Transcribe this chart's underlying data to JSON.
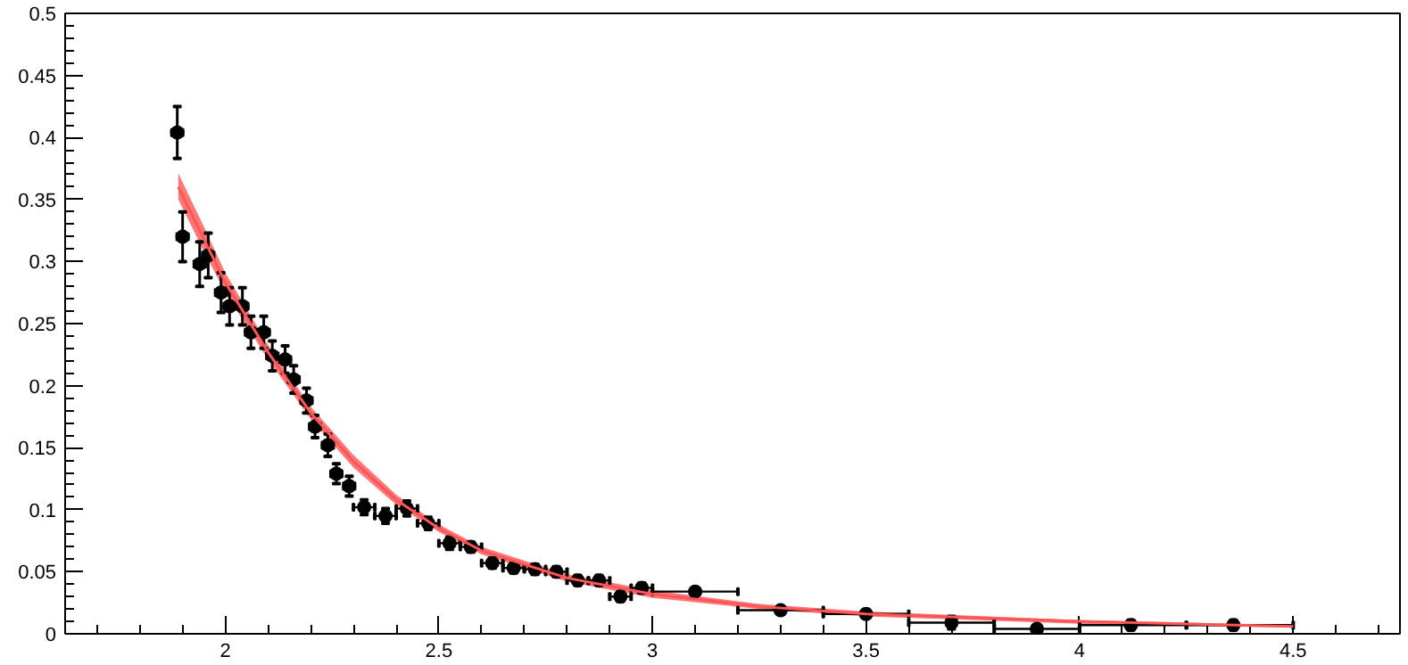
{
  "chart_data": {
    "type": "scatter",
    "xlim": [
      1.625,
      4.75
    ],
    "ylim": [
      0,
      0.5
    ],
    "xticks": [
      2,
      2.5,
      3,
      3.5,
      4,
      4.5
    ],
    "yticks": [
      0,
      0.05,
      0.1,
      0.15,
      0.2,
      0.25,
      0.3,
      0.35,
      0.4,
      0.45,
      0.5
    ],
    "series": [
      {
        "type": "line",
        "color": "#ff5555",
        "x": [
          1.89,
          1.95,
          2.0,
          2.1,
          2.2,
          2.3,
          2.4,
          2.5,
          2.6,
          2.8,
          3.0,
          3.25,
          3.5,
          4.0,
          4.5
        ],
        "values": [
          0.36,
          0.318,
          0.283,
          0.227,
          0.178,
          0.139,
          0.108,
          0.085,
          0.067,
          0.045,
          0.032,
          0.022,
          0.016,
          0.01,
          0.006
        ],
        "lower": [
          0.35,
          0.308,
          0.275,
          0.221,
          0.173,
          0.134,
          0.104,
          0.082,
          0.064,
          0.042,
          0.029,
          0.02,
          0.014,
          0.008,
          0.005
        ],
        "upper": [
          0.371,
          0.328,
          0.291,
          0.233,
          0.183,
          0.144,
          0.112,
          0.088,
          0.07,
          0.048,
          0.035,
          0.024,
          0.018,
          0.011,
          0.007
        ]
      },
      {
        "color": "#000000",
        "marker": "circle",
        "x": [
          1.8875,
          1.9,
          1.94,
          1.96,
          1.99,
          2.01,
          2.04,
          2.06,
          2.09,
          2.11,
          2.14,
          2.16,
          2.19,
          2.21,
          2.24,
          2.26,
          2.29,
          2.325,
          2.375,
          2.425,
          2.475,
          2.525,
          2.575,
          2.625,
          2.675,
          2.725,
          2.775,
          2.825,
          2.875,
          2.925,
          2.975,
          3.1,
          3.3,
          3.5,
          3.7,
          3.9,
          4.12,
          4.36
        ],
        "values": [
          0.404,
          0.32,
          0.298,
          0.305,
          0.275,
          0.264,
          0.264,
          0.243,
          0.243,
          0.224,
          0.221,
          0.205,
          0.188,
          0.167,
          0.152,
          0.129,
          0.119,
          0.102,
          0.095,
          0.101,
          0.089,
          0.073,
          0.07,
          0.057,
          0.053,
          0.052,
          0.05,
          0.043,
          0.043,
          0.03,
          0.037,
          0.034,
          0.019,
          0.016,
          0.009,
          0.004,
          0.007,
          0.007
        ],
        "errors": [
          0.021,
          0.02,
          0.018,
          0.018,
          0.016,
          0.015,
          0.015,
          0.013,
          0.013,
          0.012,
          0.011,
          0.011,
          0.01,
          0.009,
          0.009,
          0.008,
          0.008,
          0.006,
          0.006,
          0.006,
          0.005,
          0.005,
          0.004,
          0.004,
          0.004,
          0.004,
          0.004,
          0.004,
          0.004,
          0.004,
          0.004,
          0.003,
          0.003,
          0.003,
          0.005,
          0.003,
          0.004,
          0.004
        ],
        "xerrors": [
          0.0125,
          0.0125,
          0.0125,
          0.0125,
          0.0125,
          0.0125,
          0.0125,
          0.0125,
          0.0125,
          0.0125,
          0.0125,
          0.0125,
          0.0125,
          0.0125,
          0.0125,
          0.0125,
          0.0125,
          0.025,
          0.025,
          0.025,
          0.025,
          0.025,
          0.025,
          0.025,
          0.025,
          0.025,
          0.025,
          0.025,
          0.025,
          0.025,
          0.025,
          0.1,
          0.1,
          0.1,
          0.1,
          0.1,
          [
            4.0,
            4.25
          ],
          [
            4.25,
            4.5
          ]
        ]
      }
    ]
  }
}
